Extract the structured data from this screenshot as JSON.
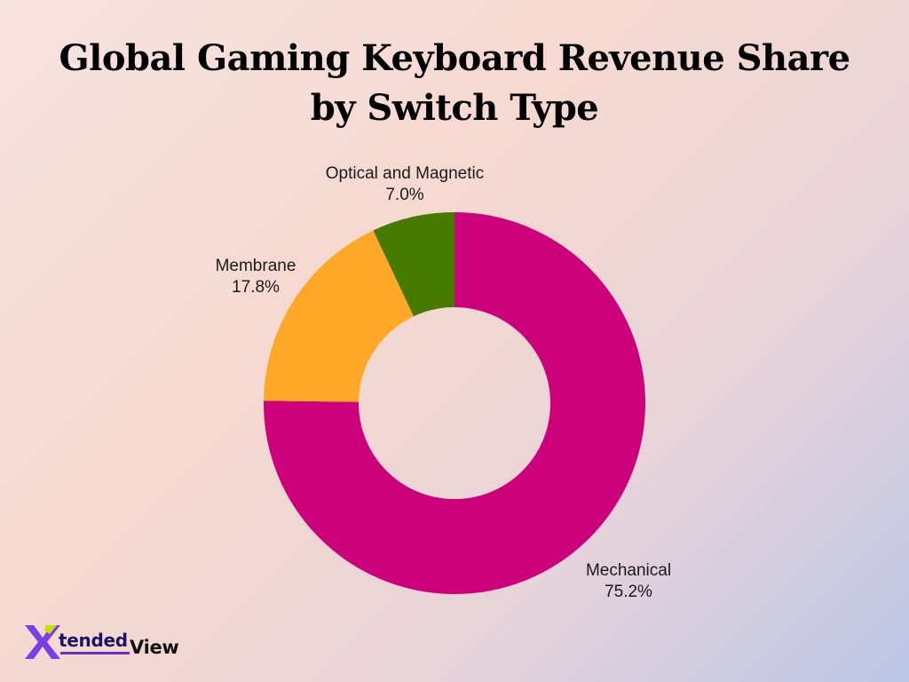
{
  "chart_data": {
    "type": "pie",
    "donut": true,
    "title": "Global Gaming Keyboard Revenue Share by Switch Type",
    "slices": [
      {
        "label": "Mechanical",
        "value": 75.2,
        "value_label": "75.2%",
        "color": "#cc007a"
      },
      {
        "label": "Membrane",
        "value": 17.8,
        "value_label": "17.8%",
        "color": "#ffa726"
      },
      {
        "label": "Optical and Magnetic",
        "value": 7.0,
        "value_label": "7.0%",
        "color": "#467a00"
      }
    ],
    "start_angle": "12 o'clock",
    "direction": "clockwise"
  },
  "logo": {
    "x_letter": "X",
    "tended": "tended",
    "view": "View",
    "colors": {
      "x_primary": "#7b3fe4",
      "x_accent": "#c6e000",
      "text_dark": "#1b1464"
    }
  }
}
